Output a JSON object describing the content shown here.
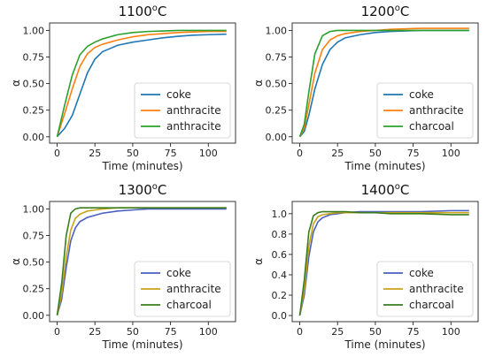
{
  "chart_data": [
    {
      "type": "line",
      "title": "1100",
      "title_sup": "o",
      "title_suffix": "C",
      "xlabel": "Time (minutes)",
      "ylabel": "α",
      "xlim": [
        -5,
        118
      ],
      "ylim": [
        -0.06,
        1.07
      ],
      "xticks": [
        0,
        25,
        50,
        75,
        100
      ],
      "yticks": [
        0.0,
        0.25,
        0.5,
        0.75,
        1.0
      ],
      "ytick_labels": [
        "0.00",
        "0.25",
        "0.50",
        "0.75",
        "1.00"
      ],
      "legend_position": "lower right",
      "grid": false,
      "series": [
        {
          "name": "coke",
          "color": "#1f77b4",
          "x": [
            0,
            5,
            10,
            15,
            20,
            25,
            30,
            40,
            50,
            60,
            70,
            80,
            90,
            100,
            112
          ],
          "y": [
            0.0,
            0.08,
            0.2,
            0.4,
            0.6,
            0.73,
            0.8,
            0.86,
            0.89,
            0.91,
            0.93,
            0.945,
            0.955,
            0.96,
            0.965
          ]
        },
        {
          "name": "anthracite",
          "color": "#ff7f0e",
          "x": [
            0,
            5,
            10,
            15,
            20,
            25,
            30,
            40,
            50,
            60,
            70,
            80,
            90,
            100,
            112
          ],
          "y": [
            0.0,
            0.22,
            0.45,
            0.66,
            0.78,
            0.84,
            0.87,
            0.91,
            0.94,
            0.96,
            0.97,
            0.98,
            0.985,
            0.99,
            0.99
          ]
        },
        {
          "name": "anthracite",
          "color": "#2ca02c",
          "x": [
            0,
            5,
            10,
            15,
            20,
            25,
            30,
            40,
            50,
            60,
            70,
            80,
            90,
            100,
            112
          ],
          "y": [
            0.0,
            0.3,
            0.58,
            0.77,
            0.85,
            0.89,
            0.92,
            0.96,
            0.98,
            0.99,
            0.995,
            1.0,
            1.0,
            1.0,
            1.0
          ]
        }
      ]
    },
    {
      "type": "line",
      "title": "1200",
      "title_sup": "o",
      "title_suffix": "C",
      "xlabel": "Time (minutes)",
      "ylabel": "α",
      "xlim": [
        -5,
        118
      ],
      "ylim": [
        -0.06,
        1.07
      ],
      "xticks": [
        0,
        25,
        50,
        75,
        100
      ],
      "yticks": [
        0.0,
        0.25,
        0.5,
        0.75,
        1.0
      ],
      "ytick_labels": [
        "0.00",
        "0.25",
        "0.50",
        "0.75",
        "1.00"
      ],
      "legend_position": "lower right",
      "grid": false,
      "series": [
        {
          "name": "coke",
          "color": "#1f77b4",
          "x": [
            0,
            3,
            6,
            10,
            15,
            20,
            25,
            30,
            40,
            50,
            60,
            80,
            100,
            112
          ],
          "y": [
            0.0,
            0.05,
            0.2,
            0.45,
            0.68,
            0.82,
            0.89,
            0.93,
            0.96,
            0.98,
            0.99,
            1.0,
            1.0,
            1.0
          ]
        },
        {
          "name": "anthracite",
          "color": "#ff7f0e",
          "x": [
            0,
            3,
            6,
            10,
            15,
            20,
            25,
            30,
            40,
            50,
            60,
            80,
            100,
            112
          ],
          "y": [
            0.0,
            0.08,
            0.3,
            0.6,
            0.82,
            0.91,
            0.95,
            0.97,
            0.99,
            1.0,
            1.01,
            1.02,
            1.02,
            1.02
          ]
        },
        {
          "name": "charcoal",
          "color": "#2ca02c",
          "x": [
            0,
            3,
            6,
            10,
            15,
            20,
            25,
            30,
            40,
            50,
            60,
            80,
            100,
            112
          ],
          "y": [
            0.0,
            0.12,
            0.42,
            0.78,
            0.95,
            0.99,
            1.0,
            1.0,
            1.0,
            1.0,
            1.0,
            1.0,
            1.0,
            1.0
          ]
        }
      ]
    },
    {
      "type": "line",
      "title": "1300",
      "title_sup": "o",
      "title_suffix": "C",
      "xlabel": "Time (minutes)",
      "ylabel": "α",
      "xlim": [
        -5,
        118
      ],
      "ylim": [
        -0.06,
        1.07
      ],
      "xticks": [
        0,
        25,
        50,
        75,
        100
      ],
      "yticks": [
        0.0,
        0.25,
        0.5,
        0.75,
        1.0
      ],
      "ytick_labels": [
        "0.00",
        "0.25",
        "0.50",
        "0.75",
        "1.00"
      ],
      "legend_position": "lower right",
      "grid": false,
      "series": [
        {
          "name": "coke",
          "color": "#4a5fc1",
          "x": [
            0,
            3,
            6,
            9,
            12,
            15,
            20,
            25,
            30,
            40,
            50,
            60,
            80,
            100,
            112
          ],
          "y": [
            0.0,
            0.15,
            0.45,
            0.7,
            0.82,
            0.88,
            0.92,
            0.94,
            0.96,
            0.98,
            0.99,
            1.0,
            1.0,
            1.0,
            1.0
          ]
        },
        {
          "name": "anthracite",
          "color": "#c9a21a",
          "x": [
            0,
            3,
            6,
            9,
            12,
            15,
            20,
            25,
            30,
            40,
            50,
            60,
            80,
            100,
            112
          ],
          "y": [
            0.0,
            0.2,
            0.55,
            0.8,
            0.91,
            0.95,
            0.98,
            0.99,
            1.0,
            1.01,
            1.01,
            1.01,
            1.01,
            1.01,
            1.01
          ]
        },
        {
          "name": "charcoal",
          "color": "#3a7d1e",
          "x": [
            0,
            3,
            6,
            9,
            12,
            15,
            20,
            25,
            30,
            40,
            50,
            60,
            80,
            100,
            112
          ],
          "y": [
            0.0,
            0.3,
            0.75,
            0.96,
            1.0,
            1.01,
            1.01,
            1.01,
            1.01,
            1.01,
            1.01,
            1.01,
            1.01,
            1.01,
            1.01
          ]
        }
      ]
    },
    {
      "type": "line",
      "title": "1400",
      "title_sup": "o",
      "title_suffix": "C",
      "xlabel": "Time (minutes)",
      "ylabel": "α",
      "xlim": [
        -5,
        118
      ],
      "ylim": [
        -0.06,
        1.12
      ],
      "xticks": [
        0,
        25,
        50,
        75,
        100
      ],
      "yticks": [
        0.0,
        0.2,
        0.4,
        0.6,
        0.8,
        1.0
      ],
      "ytick_labels": [
        "0.0",
        "0.2",
        "0.4",
        "0.6",
        "0.8",
        "1.0"
      ],
      "legend_position": "lower right",
      "grid": false,
      "series": [
        {
          "name": "coke",
          "color": "#4a5fc1",
          "x": [
            0,
            3,
            6,
            9,
            12,
            15,
            20,
            25,
            30,
            40,
            50,
            60,
            80,
            100,
            112
          ],
          "y": [
            0.0,
            0.2,
            0.58,
            0.82,
            0.92,
            0.96,
            0.99,
            1.0,
            1.01,
            1.02,
            1.02,
            1.02,
            1.02,
            1.03,
            1.03
          ]
        },
        {
          "name": "anthracite",
          "color": "#c9a21a",
          "x": [
            0,
            3,
            6,
            9,
            12,
            15,
            20,
            25,
            30,
            40,
            50,
            60,
            80,
            100,
            112
          ],
          "y": [
            0.0,
            0.25,
            0.68,
            0.9,
            0.97,
            0.99,
            1.0,
            1.01,
            1.01,
            1.01,
            1.01,
            1.01,
            1.01,
            1.01,
            1.01
          ]
        },
        {
          "name": "charcoal",
          "color": "#3a7d1e",
          "x": [
            0,
            3,
            6,
            9,
            12,
            15,
            20,
            25,
            30,
            40,
            50,
            60,
            80,
            100,
            112
          ],
          "y": [
            0.0,
            0.35,
            0.82,
            0.98,
            1.01,
            1.02,
            1.02,
            1.02,
            1.02,
            1.01,
            1.01,
            1.0,
            1.0,
            0.99,
            0.99
          ]
        }
      ]
    }
  ]
}
